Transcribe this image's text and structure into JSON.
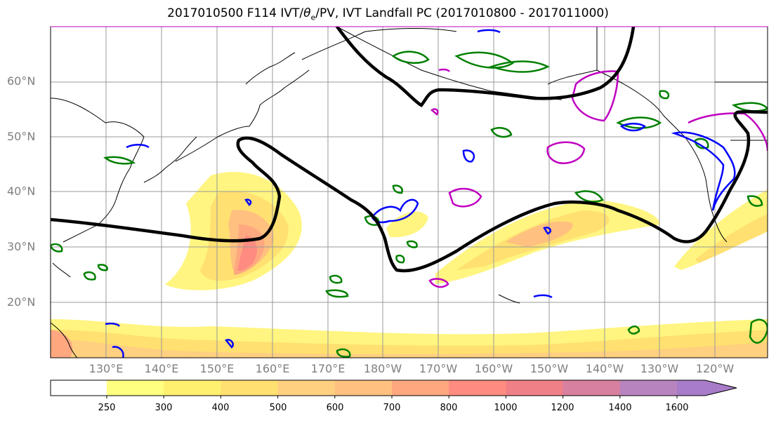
{
  "title": {
    "prefix": "2017010500 F114 IVT/",
    "theta": "θ",
    "sub": "e",
    "suffix": "/PV, IVT Landfall PC (2017010800 - 2017011000)"
  },
  "latitude_labels": [
    "60°N",
    "50°N",
    "40°N",
    "30°N",
    "20°N"
  ],
  "longitude_labels": [
    "130°E",
    "140°E",
    "150°E",
    "160°E",
    "170°E",
    "180°W",
    "170°W",
    "160°W",
    "150°W",
    "140°W",
    "130°W",
    "120°W"
  ],
  "colorbar": {
    "ticks": [
      "250",
      "300",
      "400",
      "500",
      "600",
      "700",
      "800",
      "1000",
      "1200",
      "1400",
      "1600"
    ],
    "colors": [
      "#ffff80",
      "#fff070",
      "#ffe070",
      "#ffd080",
      "#ffc080",
      "#ffa880",
      "#ff8c80",
      "#f08088",
      "#d880a0",
      "#b884c0",
      "#a87cc8"
    ]
  },
  "contour_colors": {
    "pv": "#000000",
    "theta_e": "#008000",
    "ivt_low": "#0000ff",
    "ivt_high": "#c000c0"
  }
}
